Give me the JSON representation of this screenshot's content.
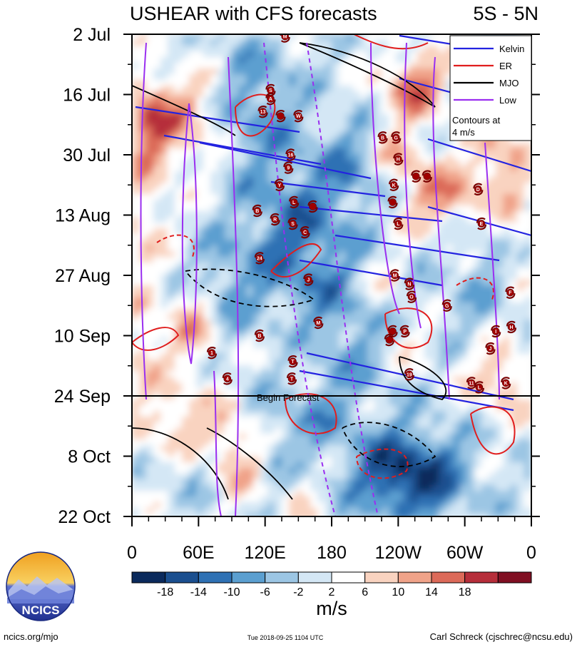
{
  "chart_data": {
    "type": "heatmap",
    "title": "USHEAR with CFS forecasts",
    "region_label": "5S - 5N",
    "x_axis": {
      "tick_labels": [
        "0",
        "60E",
        "120E",
        "180",
        "120W",
        "60W",
        "0"
      ],
      "tick_values_deg_east": [
        0,
        60,
        120,
        180,
        240,
        300,
        360
      ],
      "range": [
        0,
        360
      ]
    },
    "y_axis": {
      "tick_labels": [
        "2 Jul",
        "16 Jul",
        "30 Jul",
        "13 Aug",
        "27 Aug",
        "10 Sep",
        "24 Sep",
        "8 Oct",
        "22 Oct"
      ],
      "tick_day_offsets": [
        0,
        14,
        28,
        42,
        56,
        70,
        84,
        98,
        112
      ],
      "range_days": [
        0,
        112
      ],
      "direction": "time increases downward"
    },
    "colorbar": {
      "unit_label": "m/s",
      "tick_labels": [
        "-18",
        "-14",
        "-10",
        "-6",
        "-2",
        "2",
        "6",
        "10",
        "14",
        "18"
      ],
      "bins": [
        -22,
        -18,
        -14,
        -10,
        -6,
        -2,
        2,
        6,
        10,
        14,
        18,
        22
      ],
      "colors": [
        "#0b2a5c",
        "#1b4f8f",
        "#2f71b4",
        "#5b9fd0",
        "#9cc6e4",
        "#d4e7f5",
        "#ffffff",
        "#f9d3c0",
        "#f0a389",
        "#dc6a59",
        "#b62e3a",
        "#800f22"
      ]
    },
    "legend": {
      "placement": "top-right",
      "entries": [
        {
          "name": "Kelvin",
          "color": "#2323e0"
        },
        {
          "name": "ER",
          "color": "#e01d1d"
        },
        {
          "name": "MJO",
          "color": "#000000"
        },
        {
          "name": "Low",
          "color": "#9a2ff0"
        }
      ],
      "note_lines": [
        "Contours at",
        "4 m/s"
      ]
    },
    "forecast_marker": {
      "label": "Begin Forecast",
      "day": 84
    },
    "storms": [
      {
        "label": "M",
        "lon": 138,
        "day": 0.5
      },
      {
        "label": "S",
        "lon": 125,
        "day": 13
      },
      {
        "label": "A",
        "lon": 125,
        "day": 15
      },
      {
        "label": "13",
        "lon": 118,
        "day": 18
      },
      {
        "label": "W",
        "lon": 150,
        "day": 19
      },
      {
        "label": "",
        "lon": 134,
        "day": 19
      },
      {
        "label": "B",
        "lon": 226,
        "day": 24
      },
      {
        "label": "G",
        "lon": 238,
        "day": 24
      },
      {
        "label": "16",
        "lon": 143,
        "day": 28
      },
      {
        "label": "H",
        "lon": 240,
        "day": 29
      },
      {
        "label": "9",
        "lon": 141,
        "day": 31
      },
      {
        "label": "",
        "lon": 256,
        "day": 33
      },
      {
        "label": "",
        "lon": 266,
        "day": 33
      },
      {
        "label": "Y",
        "lon": 133,
        "day": 35
      },
      {
        "label": "K",
        "lon": 236,
        "day": 35
      },
      {
        "label": "D",
        "lon": 312,
        "day": 36
      },
      {
        "label": "L",
        "lon": 146,
        "day": 39
      },
      {
        "label": "",
        "lon": 235,
        "day": 39
      },
      {
        "label": "",
        "lon": 163,
        "day": 40
      },
      {
        "label": "B",
        "lon": 113,
        "day": 41
      },
      {
        "label": "R",
        "lon": 129,
        "day": 43
      },
      {
        "label": "S",
        "lon": 145,
        "day": 44
      },
      {
        "label": "L",
        "lon": 240,
        "day": 44
      },
      {
        "label": "E",
        "lon": 315,
        "day": 44
      },
      {
        "label": "C",
        "lon": 156,
        "day": 46
      },
      {
        "label": "24",
        "lon": 115,
        "day": 52
      },
      {
        "label": "J",
        "lon": 159,
        "day": 57
      },
      {
        "label": "M",
        "lon": 237,
        "day": 56
      },
      {
        "label": "N",
        "lon": 250,
        "day": 58
      },
      {
        "label": "O",
        "lon": 252,
        "day": 61
      },
      {
        "label": "F",
        "lon": 341,
        "day": 60
      },
      {
        "label": "G",
        "lon": 284,
        "day": 63
      },
      {
        "label": "M",
        "lon": 168,
        "day": 67
      },
      {
        "label": "P",
        "lon": 246,
        "day": 69
      },
      {
        "label": "",
        "lon": 235,
        "day": 69
      },
      {
        "label": "I",
        "lon": 328,
        "day": 69
      },
      {
        "label": "H",
        "lon": 342,
        "day": 68
      },
      {
        "label": "B",
        "lon": 115,
        "day": 70
      },
      {
        "label": "",
        "lon": 232,
        "day": 71
      },
      {
        "label": "J",
        "lon": 323,
        "day": 73
      },
      {
        "label": "1",
        "lon": 72,
        "day": 74
      },
      {
        "label": "T",
        "lon": 145,
        "day": 76
      },
      {
        "label": "19",
        "lon": 250,
        "day": 79
      },
      {
        "label": "4",
        "lon": 86,
        "day": 80
      },
      {
        "label": "T",
        "lon": 144,
        "day": 80
      },
      {
        "label": "11",
        "lon": 306,
        "day": 81
      },
      {
        "label": "L",
        "lon": 313,
        "day": 82
      },
      {
        "label": "K",
        "lon": 337,
        "day": 81
      }
    ]
  },
  "footer": {
    "logo_text": "NCICS",
    "left_text": "ncics.org/mjo",
    "center_text": "Tue 2018-09-25 1104 UTC",
    "right_text": "Carl Schreck (cjschrec@ncsu.edu)"
  }
}
